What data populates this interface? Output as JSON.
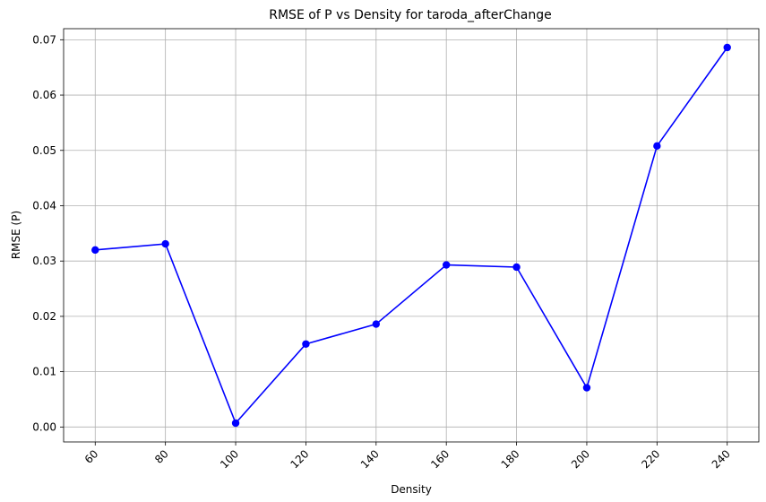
{
  "chart_data": {
    "type": "line",
    "title": "RMSE of P vs Density for taroda_afterChange",
    "xlabel": "Density",
    "ylabel": "RMSE (P)",
    "x": [
      60,
      80,
      100,
      120,
      140,
      160,
      180,
      200,
      220,
      240
    ],
    "series": [
      {
        "values": [
          0.032,
          0.0331,
          0.0007,
          0.015,
          0.0186,
          0.0293,
          0.0289,
          0.0071,
          0.0508,
          0.0686
        ],
        "color": "#0000ff",
        "marker": "circle"
      }
    ],
    "xticks": [
      "60",
      "80",
      "100",
      "120",
      "140",
      "160",
      "180",
      "200",
      "220",
      "240"
    ],
    "yticks": [
      "0.00",
      "0.01",
      "0.02",
      "0.03",
      "0.04",
      "0.05",
      "0.06",
      "0.07"
    ],
    "xlim": [
      51,
      249
    ],
    "ylim": [
      -0.0027,
      0.072
    ],
    "grid": true,
    "xtick_rotation": -45
  }
}
